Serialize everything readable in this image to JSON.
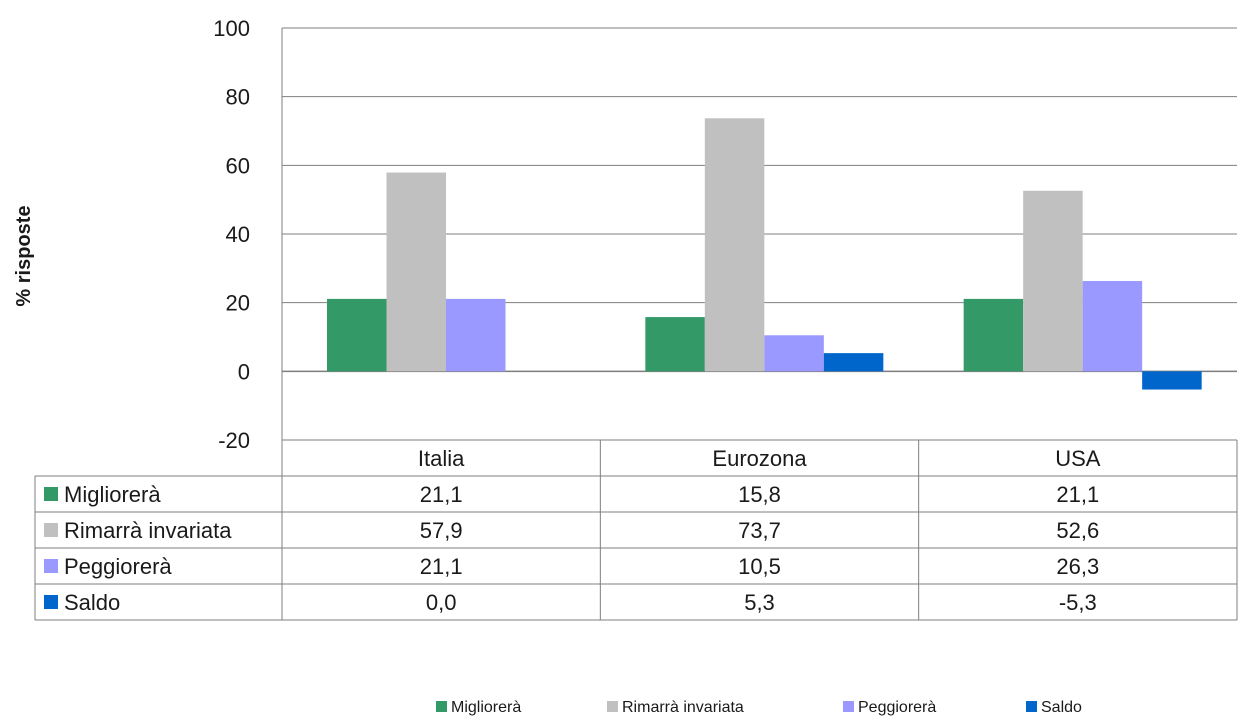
{
  "chart_data": {
    "type": "bar",
    "title": "",
    "xlabel": "",
    "ylabel": "% risposte",
    "ylim": [
      -20,
      100
    ],
    "yticks": [
      -20,
      0,
      20,
      40,
      60,
      80,
      100
    ],
    "grid": true,
    "legend_position": "bottom",
    "categories": [
      "Italia",
      "Eurozona",
      "USA"
    ],
    "series": [
      {
        "name": "Migliorerà",
        "color": "#339966",
        "values": [
          21.1,
          15.8,
          21.1
        ],
        "labels": [
          "21,1",
          "15,8",
          "21,1"
        ]
      },
      {
        "name": "Rimarrà invariata",
        "color": "#c0c0c0",
        "values": [
          57.9,
          73.7,
          52.6
        ],
        "labels": [
          "57,9",
          "73,7",
          "52,6"
        ]
      },
      {
        "name": "Peggiorerà",
        "color": "#9999ff",
        "values": [
          21.1,
          10.5,
          26.3
        ],
        "labels": [
          "21,1",
          "10,5",
          "26,3"
        ]
      },
      {
        "name": "Saldo",
        "color": "#0066cc",
        "values": [
          0.0,
          5.3,
          -5.3
        ],
        "labels": [
          "0,0",
          "5,3",
          "-5,3"
        ]
      }
    ],
    "data_table": true
  }
}
